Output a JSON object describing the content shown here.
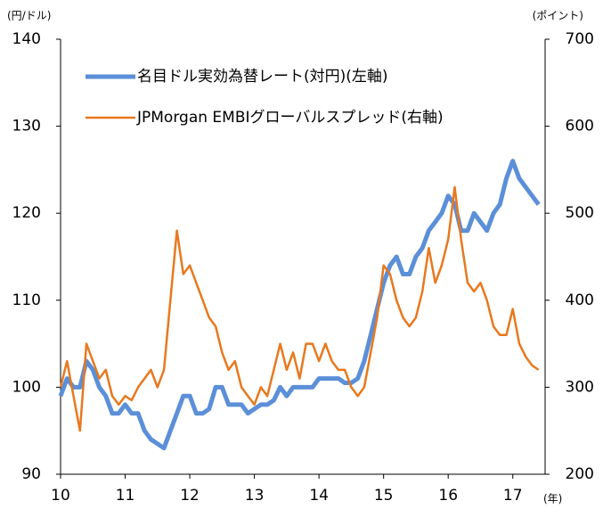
{
  "chart_data": {
    "type": "line",
    "y_label": "(円/ドル)",
    "y2_label": "(ポイント)",
    "x_label": "(年)",
    "x": [
      10.0,
      10.1,
      10.2,
      10.3,
      10.4,
      10.5,
      10.6,
      10.7,
      10.8,
      10.9,
      11.0,
      11.1,
      11.2,
      11.3,
      11.4,
      11.5,
      11.6,
      11.7,
      11.8,
      11.9,
      12.0,
      12.1,
      12.2,
      12.3,
      12.4,
      12.5,
      12.6,
      12.7,
      12.8,
      12.9,
      13.0,
      13.1,
      13.2,
      13.3,
      13.4,
      13.5,
      13.6,
      13.7,
      13.8,
      13.9,
      14.0,
      14.1,
      14.2,
      14.3,
      14.4,
      14.5,
      14.6,
      14.7,
      14.8,
      14.9,
      15.0,
      15.1,
      15.2,
      15.3,
      15.4,
      15.5,
      15.6,
      15.7,
      15.8,
      15.9,
      16.0,
      16.1,
      16.2,
      16.3,
      16.4,
      16.5,
      16.6,
      16.7,
      16.8,
      16.9,
      17.0,
      17.1,
      17.2,
      17.3,
      17.4
    ],
    "series": [
      {
        "name": "名目ドル実効為替レート(対円)(左軸)",
        "color": "#5b8fd8",
        "axis": "y",
        "values": [
          99,
          101,
          100,
          100,
          103,
          102,
          100,
          99,
          97,
          97,
          98,
          97,
          97,
          95,
          94,
          93.5,
          93,
          95,
          97,
          99,
          99,
          97,
          97,
          97.5,
          100,
          100,
          98,
          98,
          98,
          97,
          97.5,
          98,
          98,
          98.5,
          100,
          99,
          100,
          100,
          100,
          100,
          101,
          101,
          101,
          101,
          100.5,
          100.5,
          101,
          103,
          106,
          109,
          112,
          114,
          115,
          113,
          113,
          115,
          116,
          118,
          119,
          120,
          122,
          121,
          118,
          118,
          120,
          119,
          118,
          120,
          121,
          124,
          126,
          124,
          123,
          122,
          121
        ]
      },
      {
        "name": "JPMorgan EMBIグローバルスプレッド(右軸)",
        "color": "#e8781e",
        "axis": "y2",
        "values": [
          300,
          330,
          290,
          250,
          350,
          330,
          310,
          320,
          290,
          280,
          290,
          285,
          300,
          310,
          320,
          300,
          320,
          400,
          480,
          430,
          440,
          420,
          400,
          380,
          370,
          340,
          320,
          330,
          300,
          290,
          280,
          300,
          290,
          320,
          350,
          320,
          340,
          310,
          350,
          350,
          330,
          350,
          330,
          320,
          320,
          300,
          290,
          300,
          340,
          380,
          440,
          430,
          400,
          380,
          370,
          380,
          410,
          460,
          420,
          440,
          470,
          530,
          470,
          420,
          410,
          420,
          400,
          370,
          360,
          360,
          390,
          350,
          335,
          325,
          320
        ]
      }
    ],
    "xlim": [
      10,
      17.5
    ],
    "xticks": [
      10,
      11,
      12,
      13,
      14,
      15,
      16,
      17
    ],
    "ylim": [
      90,
      140
    ],
    "yticks": [
      90,
      100,
      110,
      120,
      130,
      140
    ],
    "y2lim": [
      200,
      700
    ],
    "y2ticks": [
      200,
      300,
      400,
      500,
      600,
      700
    ],
    "legend": "upper left"
  }
}
